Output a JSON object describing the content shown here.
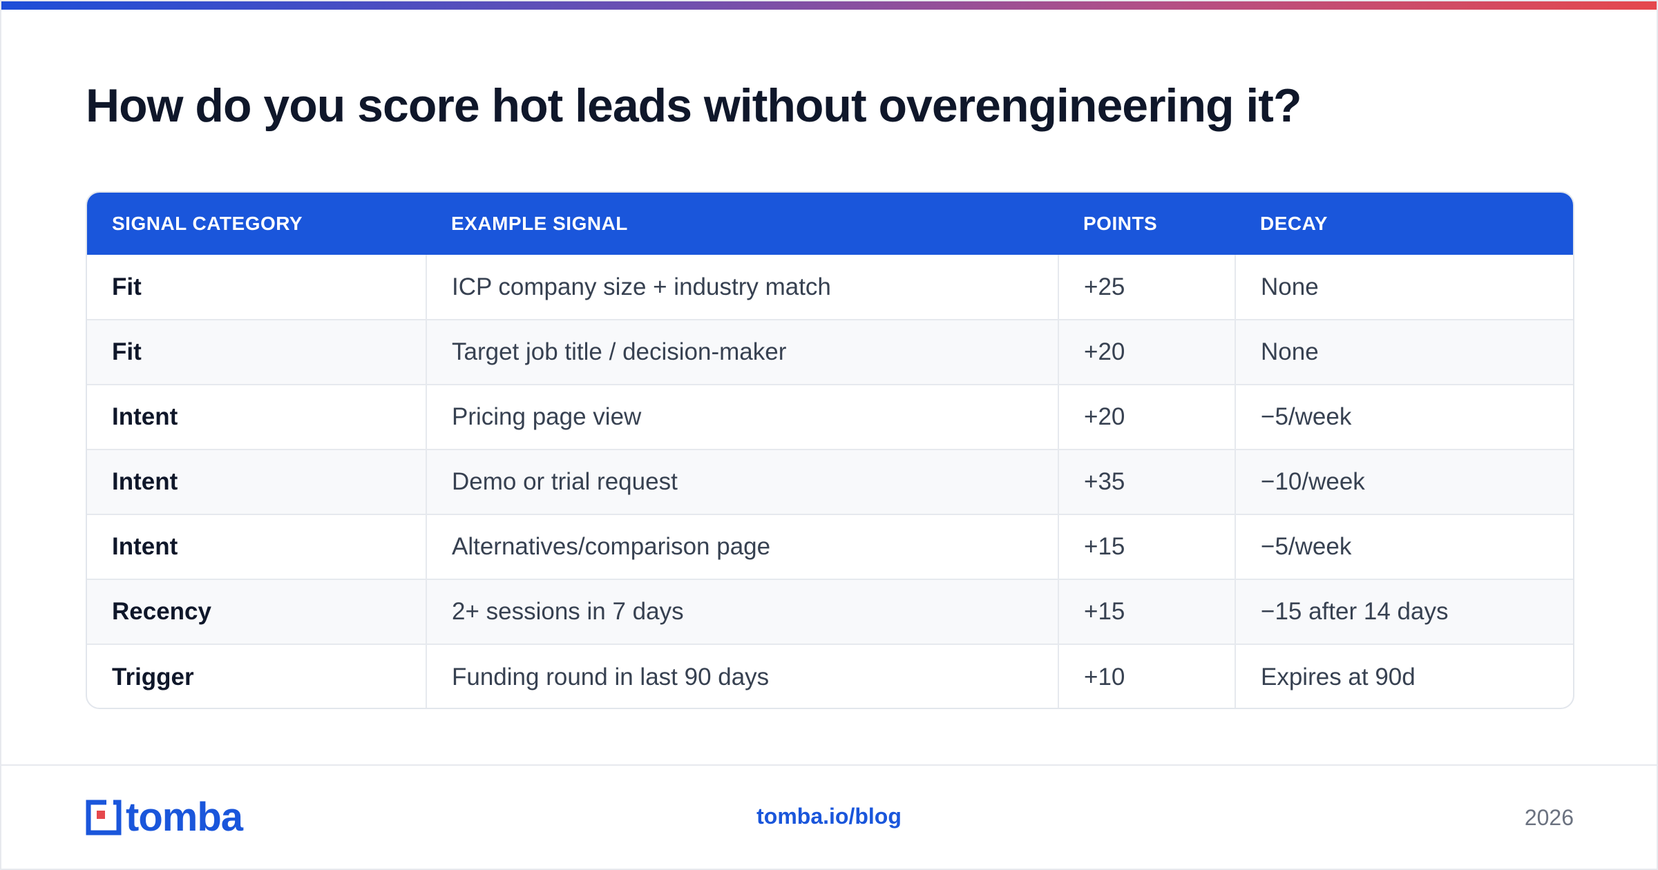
{
  "title": "How do you score hot leads without overengineering it?",
  "colors": {
    "accent": "#1a56db",
    "heading_text": "#0f172a",
    "body_text": "#374151",
    "gradient": [
      "#1d4ed8",
      "#6d4fb0",
      "#b34f86",
      "#e5484d"
    ]
  },
  "table": {
    "headers": [
      "SIGNAL CATEGORY",
      "EXAMPLE SIGNAL",
      "POINTS",
      "DECAY"
    ],
    "rows": [
      [
        "Fit",
        "ICP company size + industry match",
        "+25",
        "None"
      ],
      [
        "Fit",
        "Target job title / decision-maker",
        "+20",
        "None"
      ],
      [
        "Intent",
        "Pricing page view",
        "+20",
        "−5/week"
      ],
      [
        "Intent",
        "Demo or trial request",
        "+35",
        "−10/week"
      ],
      [
        "Intent",
        "Alternatives/comparison page",
        "+15",
        "−5/week"
      ],
      [
        "Recency",
        "2+ sessions in 7 days",
        "+15",
        "−15 after 14 days"
      ],
      [
        "Trigger",
        "Funding round in last 90 days",
        "+10",
        "Expires at 90d"
      ]
    ]
  },
  "footer": {
    "logo_text": "tomba",
    "logo_icon": "tomba-logo-icon",
    "link": "tomba.io/blog",
    "year": "2026"
  }
}
